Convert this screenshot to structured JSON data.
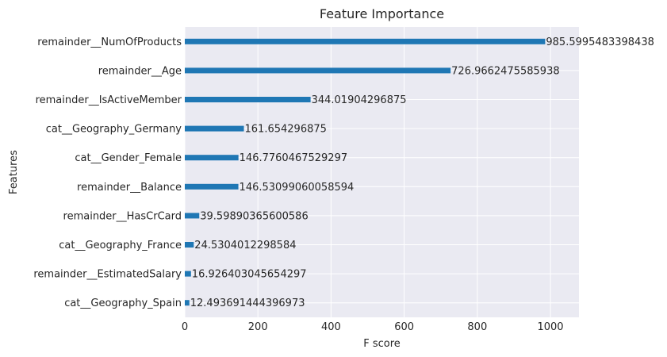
{
  "chart_data": {
    "type": "bar",
    "orientation": "horizontal",
    "title": "Feature Importance",
    "xlabel": "F score",
    "ylabel": "Features",
    "xlim": [
      0,
      1078
    ],
    "xticks": [
      0,
      200,
      400,
      600,
      800,
      1000
    ],
    "grid": true,
    "categories": [
      "remainder__NumOfProducts",
      "remainder__Age",
      "remainder__IsActiveMember",
      "cat__Geography_Germany",
      "cat__Gender_Female",
      "remainder__Balance",
      "remainder__HasCrCard",
      "cat__Geography_France",
      "remainder__EstimatedSalary",
      "cat__Geography_Spain"
    ],
    "values": [
      985.5995483398438,
      726.9662475585938,
      344.01904296875,
      161.654296875,
      146.7760467529297,
      146.53099060058594,
      39.59890365600586,
      24.5304012298584,
      16.926403045654297,
      12.493691444396973
    ],
    "value_labels": [
      "985.5995483398438",
      "726.9662475585938",
      "344.01904296875",
      "161.654296875",
      "146.7760467529297",
      "146.53099060058594",
      "39.59890365600586",
      "24.5304012298584",
      "16.926403045654297",
      "12.493691444396973"
    ],
    "colors": {
      "bar": "#1f77b4",
      "plot_background": "#eaeaf2",
      "grid": "#ffffff",
      "text": "#262626"
    }
  }
}
